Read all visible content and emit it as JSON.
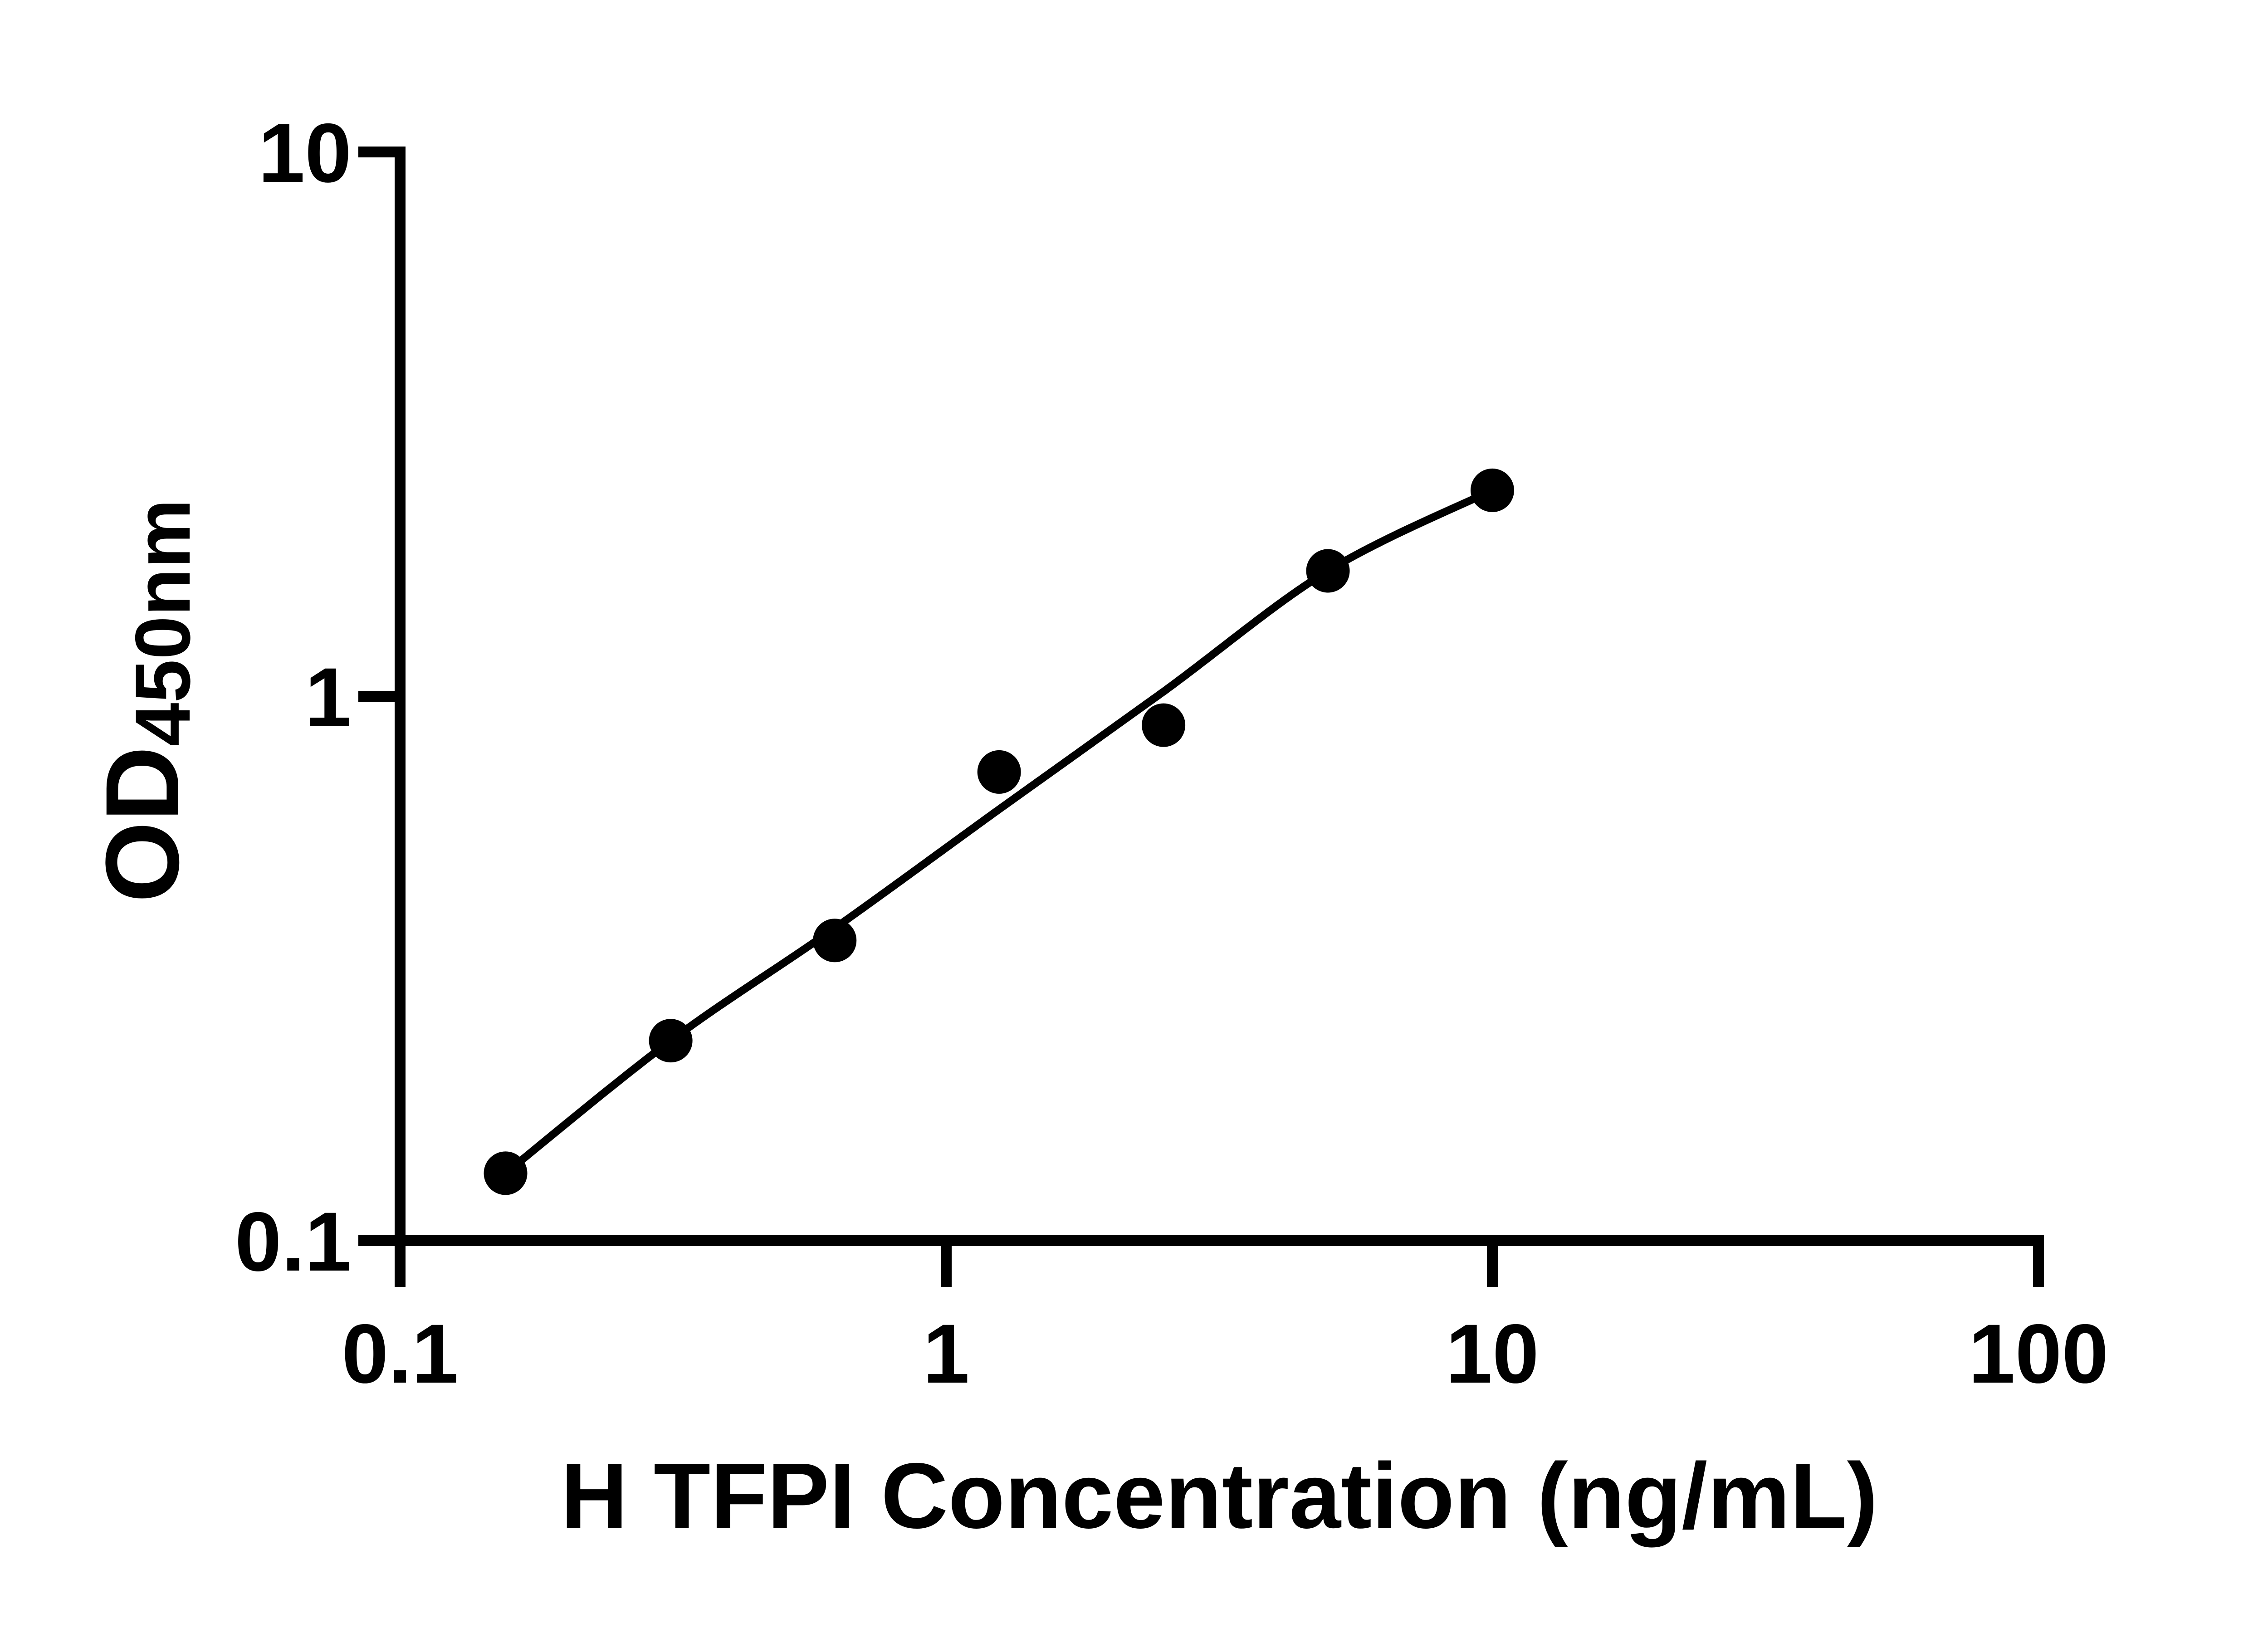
{
  "colors": {
    "background": "#ffffff",
    "ink": "#000000"
  },
  "chart_data": {
    "type": "scatter",
    "title": "",
    "xlabel": "H TFPI Concentration (ng/mL)",
    "ylabel_main": "OD",
    "ylabel_subscript": "450nm",
    "x_scale": "log",
    "y_scale": "log",
    "xlim": [
      0.1,
      100
    ],
    "ylim": [
      0.1,
      10
    ],
    "grid": false,
    "legend_position": "none",
    "x_ticks": [
      {
        "v": 0.1,
        "label": "0.1"
      },
      {
        "v": 1,
        "label": "1"
      },
      {
        "v": 10,
        "label": "10"
      },
      {
        "v": 100,
        "label": "100"
      }
    ],
    "y_ticks": [
      {
        "v": 0.1,
        "label": "0.1"
      },
      {
        "v": 1,
        "label": "1"
      },
      {
        "v": 10,
        "label": "10"
      }
    ],
    "series": [
      {
        "marker": "filled-circle",
        "color": "#000000",
        "points": [
          {
            "x": 0.156,
            "od": 0.133
          },
          {
            "x": 0.313,
            "od": 0.233
          },
          {
            "x": 0.625,
            "od": 0.356
          },
          {
            "x": 1.25,
            "od": 0.726
          },
          {
            "x": 2.5,
            "od": 0.885
          },
          {
            "x": 5,
            "od": 1.7
          },
          {
            "x": 10,
            "od": 2.39
          }
        ]
      }
    ],
    "fit_curve": {
      "x": [
        0.156,
        0.313,
        0.625,
        1.25,
        2.5,
        5,
        10
      ],
      "od": [
        0.133,
        0.233,
        0.375,
        0.62,
        1.02,
        1.7,
        2.39
      ]
    }
  }
}
